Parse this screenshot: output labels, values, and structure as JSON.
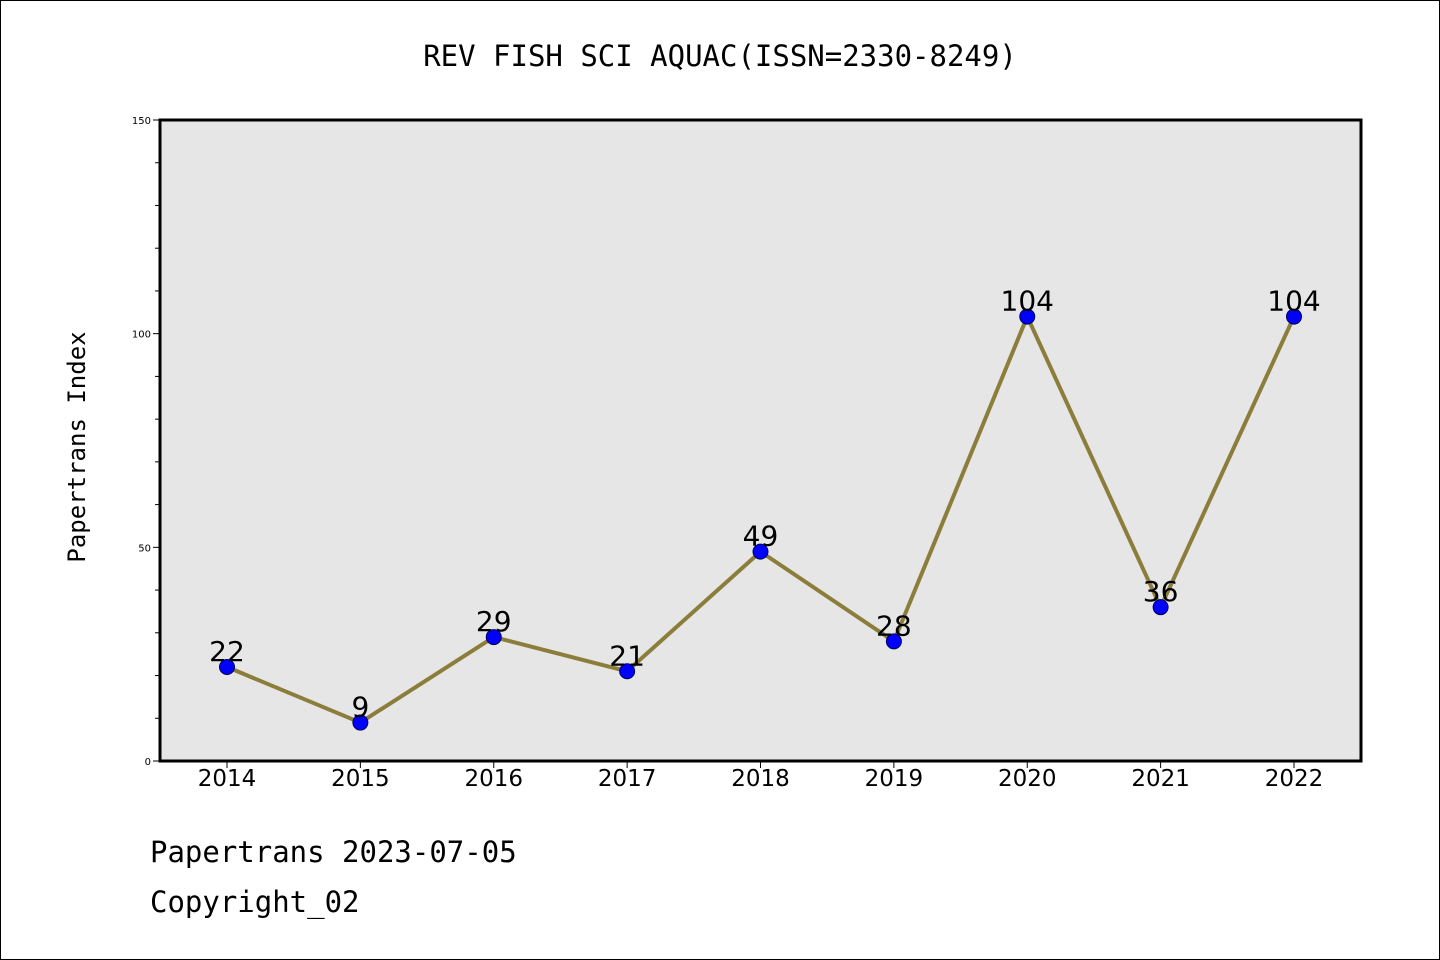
{
  "chart_data": {
    "type": "line",
    "title": "REV FISH SCI AQUAC(ISSN=2330-8249)",
    "xlabel": "",
    "ylabel": "Papertrans Index",
    "categories": [
      "2014",
      "2015",
      "2016",
      "2017",
      "2018",
      "2019",
      "2020",
      "2021",
      "2022"
    ],
    "series": [
      {
        "values": [
          22,
          9,
          29,
          21,
          49,
          28,
          104,
          36,
          104
        ]
      }
    ],
    "ylim": [
      0,
      150
    ],
    "yticks": [
      "0",
      "50",
      "100",
      "150"
    ],
    "grid": false,
    "legend": "none",
    "colors": {
      "line": "#8b7d3a",
      "marker": "#0000ff",
      "plot_bg": "#e6e6e6"
    }
  },
  "footer": {
    "line1": "Papertrans 2023-07-05",
    "line2": "Copyright_02"
  }
}
